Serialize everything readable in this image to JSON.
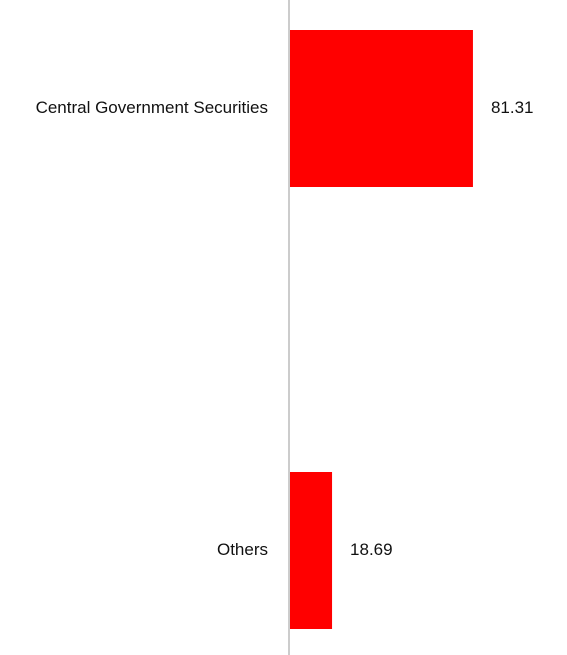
{
  "chart_data": {
    "type": "bar",
    "orientation": "horizontal",
    "categories": [
      "Central Government Securities",
      "Others"
    ],
    "values": [
      81.31,
      18.69
    ],
    "data_labels": [
      "81.31",
      "18.69"
    ],
    "title": "",
    "xlabel": "",
    "ylabel": "",
    "xlim": [
      0,
      100
    ],
    "grid": false,
    "legend": "none",
    "bar_color": "#ff0000",
    "axis_color": "#cccccc"
  }
}
